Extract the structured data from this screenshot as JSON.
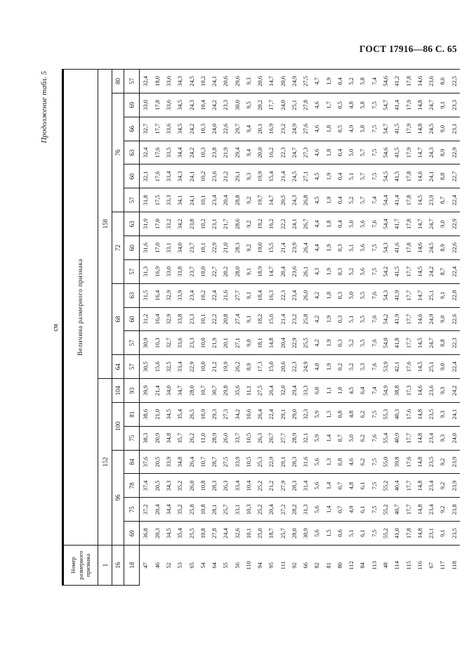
{
  "page_header": "ГОСТ 17916—86 С. 65",
  "caption": "Продолжение табл. 5",
  "units_note": "см",
  "table": {
    "corner_title": "Номер размерного признака",
    "value_title": "Величина размерного признака",
    "attr_row_numbers": [
      "1",
      "16",
      "18"
    ],
    "height_groups": [
      {
        "height": "152",
        "chest_groups": [
          {
            "chest": "96",
            "waists": [
              "69",
              "75",
              "78",
              "84"
            ]
          },
          {
            "chest": "100",
            "waists": [
              "75",
              "81"
            ]
          },
          {
            "chest": "104",
            "waists": [
              "93"
            ]
          }
        ]
      },
      {
        "height": "158",
        "chest_groups": [
          {
            "chest": "64",
            "waists": [
              "57"
            ]
          },
          {
            "chest": "68",
            "waists": [
              "57",
              "60",
              "63"
            ]
          },
          {
            "chest": "72",
            "waists": [
              "57",
              "60",
              "63"
            ]
          },
          {
            "chest": "76",
            "waists": [
              "57",
              "60",
              "63",
              "66",
              "69"
            ]
          },
          {
            "chest": "80",
            "waists": [
              "57"
            ]
          }
        ]
      }
    ],
    "rows": [
      {
        "num": "47",
        "values": [
          "36,8",
          "37,2",
          "37,4",
          "37,6",
          "38,3",
          "38,6",
          "39,9",
          "30,5",
          "30,9",
          "31,2",
          "31,5",
          "31,3",
          "31,6",
          "31,9",
          "31,8",
          "32,1",
          "32,4",
          "32,7",
          "33,0",
          "32,4"
        ]
      },
      {
        "num": "46",
        "values": [
          "20,3",
          "20,4",
          "20,5",
          "20,5",
          "20,9",
          "21,0",
          "21,4",
          "15,6",
          "16,3",
          "16,4",
          "16,4",
          "16,9",
          "17,0",
          "17,0",
          "17,5",
          "17,6",
          "17,6",
          "17,7",
          "17,8",
          "18,0"
        ]
      },
      {
        "num": "52",
        "values": [
          "34,5",
          "34,4",
          "34,3",
          "33,9",
          "34,8",
          "34,5",
          "34,0",
          "32,5",
          "32,7",
          "32,9",
          "32,9",
          "33,0",
          "33,1",
          "33,2",
          "33,3",
          "33,4",
          "33,5",
          "33,6",
          "33,6",
          "33,6"
        ]
      },
      {
        "num": "53",
        "values": [
          "35,4",
          "35,2",
          "35,2",
          "34,8",
          "35,7",
          "35,4",
          "34,7",
          "33,4",
          "33,6",
          "33,8",
          "33,9",
          "33,8",
          "34,0",
          "34,2",
          "34,1",
          "34,3",
          "34,4",
          "34,5",
          "34,5",
          "34,3"
        ]
      },
      {
        "num": "65",
        "values": [
          "25,5",
          "25,8",
          "26,0",
          "26,4",
          "26,2",
          "26,5",
          "28,0",
          "22,9",
          "23,3",
          "23,3",
          "23,4",
          "23,7",
          "23,7",
          "23,8",
          "24,1",
          "24,1",
          "24,2",
          "24,2",
          "24,3",
          "24,5"
        ]
      },
      {
        "num": "54",
        "values": [
          "10,8",
          "10,8",
          "10,8",
          "10,7",
          "11,0",
          "10,9",
          "10,7",
          "10,0",
          "10,0",
          "10,1",
          "10,2",
          "10,0",
          "10,1",
          "10,2",
          "10,1",
          "10,2",
          "10,3",
          "10,3",
          "10,4",
          "10,2"
        ]
      },
      {
        "num": "64",
        "values": [
          "27,8",
          "28,1",
          "28,3",
          "28,7",
          "28,9",
          "29,3",
          "30,7",
          "21,2",
          "21,9",
          "22,2",
          "22,4",
          "22,7",
          "22,9",
          "23,1",
          "23,4",
          "23,6",
          "23,8",
          "24,0",
          "24,2",
          "24,1"
        ]
      },
      {
        "num": "55",
        "values": [
          "24,4",
          "25,7",
          "26,3",
          "27,5",
          "26,0",
          "27,3",
          "29,8",
          "19,9",
          "20,1",
          "20,8",
          "21,6",
          "20,2",
          "21,0",
          "21,7",
          "20,4",
          "21,2",
          "21,9",
          "22,6",
          "23,3",
          "20,6"
        ]
      },
      {
        "num": "56",
        "values": [
          "32,6",
          "33,1",
          "33,4",
          "33,9",
          "33,7",
          "34,2",
          "35,6",
          "26,2",
          "27,1",
          "27,4",
          "27,7",
          "28,0",
          "28,3",
          "28,6",
          "28,8",
          "29,1",
          "29,4",
          "29,7",
          "30,0",
          "29,6"
        ]
      },
      {
        "num": "110",
        "values": [
          "10,1",
          "10,3",
          "10,4",
          "10,5",
          "10,5",
          "10,6",
          "11,1",
          "8,9",
          "9,0",
          "9,1",
          "9,1",
          "9,1",
          "9,2",
          "9,2",
          "9,2",
          "9,3",
          "9,4",
          "9,4",
          "9,5",
          "9,3"
        ]
      },
      {
        "num": "94",
        "values": [
          "25,0",
          "25,2",
          "25,2",
          "25,3",
          "26,3",
          "26,4",
          "27,5",
          "17,3",
          "18,1",
          "18,2",
          "18,4",
          "18,9",
          "19,0",
          "19,2",
          "19,7",
          "19,9",
          "20,0",
          "20,1",
          "20,2",
          "20,6"
        ]
      },
      {
        "num": "95",
        "values": [
          "18,7",
          "20,4",
          "21,2",
          "22,9",
          "20,7",
          "22,4",
          "26,4",
          "15,0",
          "14,8",
          "15,6",
          "16,3",
          "14,7",
          "15,5",
          "16,2",
          "14,7",
          "15,4",
          "16,2",
          "16,9",
          "17,7",
          "14,7"
        ]
      },
      {
        "num": "111",
        "values": [
          "25,7",
          "27,2",
          "27,9",
          "29,1",
          "27,7",
          "29,1",
          "32,0",
          "20,6",
          "20,4",
          "21,4",
          "22,3",
          "20,4",
          "21,4",
          "22,2",
          "20,5",
          "21,4",
          "22,3",
          "23,2",
          "24,0",
          "20,6"
        ]
      },
      {
        "num": "92",
        "values": [
          "28,0",
          "28,2",
          "28,3",
          "28,3",
          "28,9",
          "29,0",
          "29,4",
          "22,3",
          "22,9",
          "23,2",
          "23,4",
          "23,6",
          "23,9",
          "24,1",
          "24,3",
          "24,5",
          "24,7",
          "24,9",
          "25,1",
          "24,9"
        ]
      },
      {
        "num": "66",
        "values": [
          "30,9",
          "31,3",
          "31,4",
          "31,6",
          "32,1",
          "32,3",
          "33,3",
          "24,9",
          "25,5",
          "25,8",
          "26,0",
          "26,1",
          "26,4",
          "26,7",
          "26,8",
          "27,1",
          "27,3",
          "27,6",
          "27,8",
          "27,5"
        ]
      },
      {
        "num": "82",
        "values": [
          "5,6",
          "5,6",
          "5,6",
          "5,6",
          "5,9",
          "5,9",
          "6,0",
          "4,0",
          "4,2",
          "4,2",
          "4,2",
          "4,3",
          "4,4",
          "4,4",
          "4,5",
          "4,5",
          "4,6",
          "4,6",
          "4,6",
          "4,7"
        ]
      },
      {
        "num": "81",
        "values": [
          "1,5",
          "1,4",
          "1,4",
          "1,3",
          "1,4",
          "1,3",
          "1,1",
          "1,9",
          "1,9",
          "1,9",
          "1,8",
          "1,9",
          "1,9",
          "1,8",
          "1,9",
          "1,9",
          "1,8",
          "1,8",
          "1,7",
          "1,9"
        ]
      },
      {
        "num": "80",
        "values": [
          "0,6",
          "0,7",
          "0,7",
          "0,8",
          "0,7",
          "0,8",
          "1,0",
          "0,2",
          "0,3",
          "0,3",
          "0,3",
          "0,3",
          "0,3",
          "0,4",
          "0,4",
          "0,4",
          "0,4",
          "0,5",
          "0,5",
          "0,4"
        ]
      },
      {
        "num": "112",
        "values": [
          "5,1",
          "4,9",
          "4,8",
          "4,6",
          "5,0",
          "4,8",
          "4,5",
          "5,2",
          "5,2",
          "5,1",
          "5,0",
          "5,2",
          "5,1",
          "5,0",
          "5,2",
          "5,1",
          "5,0",
          "4,9",
          "4,8",
          "5,2"
        ]
      },
      {
        "num": "84",
        "values": [
          "6,1",
          "6,1",
          "6,1",
          "6,2",
          "6,2",
          "6,2",
          "6,4",
          "5,3",
          "5,5",
          "5,5",
          "5,5",
          "5,6",
          "5,6",
          "5,6",
          "5,7",
          "5,7",
          "5,7",
          "5,8",
          "5,8",
          "5,8"
        ]
      },
      {
        "num": "113",
        "values": [
          "7,5",
          "7,5",
          "7,5",
          "7,5",
          "7,6",
          "7,5",
          "7,4",
          "7,6",
          "7,6",
          "7,6",
          "7,6",
          "7,5",
          "7,5",
          "7,6",
          "7,4",
          "7,5",
          "7,5",
          "7,5",
          "7,5",
          "7,4"
        ]
      },
      {
        "num": "48",
        "values": [
          "55,2",
          "55,2",
          "55,2",
          "55,0",
          "55,4",
          "55,3",
          "54,9",
          "53,9",
          "54,0",
          "54,2",
          "54,3",
          "54,2",
          "54,3",
          "54,4",
          "54,4",
          "54,5",
          "54,6",
          "54,7",
          "54,7",
          "54,6"
        ]
      },
      {
        "num": "114",
        "values": [
          "41,0",
          "40,7",
          "40,4",
          "39,8",
          "40,9",
          "40,3",
          "38,8",
          "42,1",
          "41,8",
          "41,9",
          "41,9",
          "41,5",
          "41,6",
          "41,7",
          "41,4",
          "41,5",
          "41,5",
          "41,5",
          "41,4",
          "41,2"
        ]
      },
      {
        "num": "115",
        "values": [
          "17,8",
          "17,7",
          "17,7",
          "17,6",
          "17,7",
          "17,6",
          "17,3",
          "17,6",
          "17,7",
          "17,7",
          "17,7",
          "17,7",
          "17,8",
          "17,8",
          "17,8",
          "17,8",
          "17,9",
          "17,9",
          "17,9",
          "17,8"
        ]
      },
      {
        "num": "116",
        "values": [
          "14,8",
          "14,8",
          "14,8",
          "14,8",
          "14,8",
          "14,8",
          "14,6",
          "14,5",
          "14,5",
          "14,6",
          "14,7",
          "14,5",
          "14,6",
          "14,7",
          "14,5",
          "14,6",
          "14,7",
          "14,8",
          "14,8",
          "14,6"
        ]
      },
      {
        "num": "67",
        "values": [
          "23,1",
          "23,4",
          "23,4",
          "23,5",
          "23,4",
          "23,5",
          "23,6",
          "25,1",
          "24,7",
          "24,9",
          "25,1",
          "24,2",
          "24,5",
          "24,7",
          "23,9",
          "24,1",
          "24,3",
          "24,5",
          "24,7",
          "23,6"
        ]
      },
      {
        "num": "117",
        "values": [
          "9,1",
          "9,2",
          "9,2",
          "9,2",
          "9,3",
          "9,3",
          "9,3",
          "9,0",
          "8,8",
          "9,0",
          "9,1",
          "8,7",
          "8,9",
          "9,0",
          "8,7",
          "8,8",
          "8,9",
          "9,0",
          "9,1",
          "8,6"
        ]
      },
      {
        "num": "118",
        "values": [
          "23,5",
          "23,8",
          "23,9",
          "23,9",
          "24,0",
          "24,1",
          "24,2",
          "22,4",
          "22,3",
          "22,6",
          "22,8",
          "22,4",
          "22,6",
          "22,9",
          "22,4",
          "22,7",
          "22,9",
          "23,1",
          "23,3",
          "22,5"
        ]
      }
    ]
  }
}
